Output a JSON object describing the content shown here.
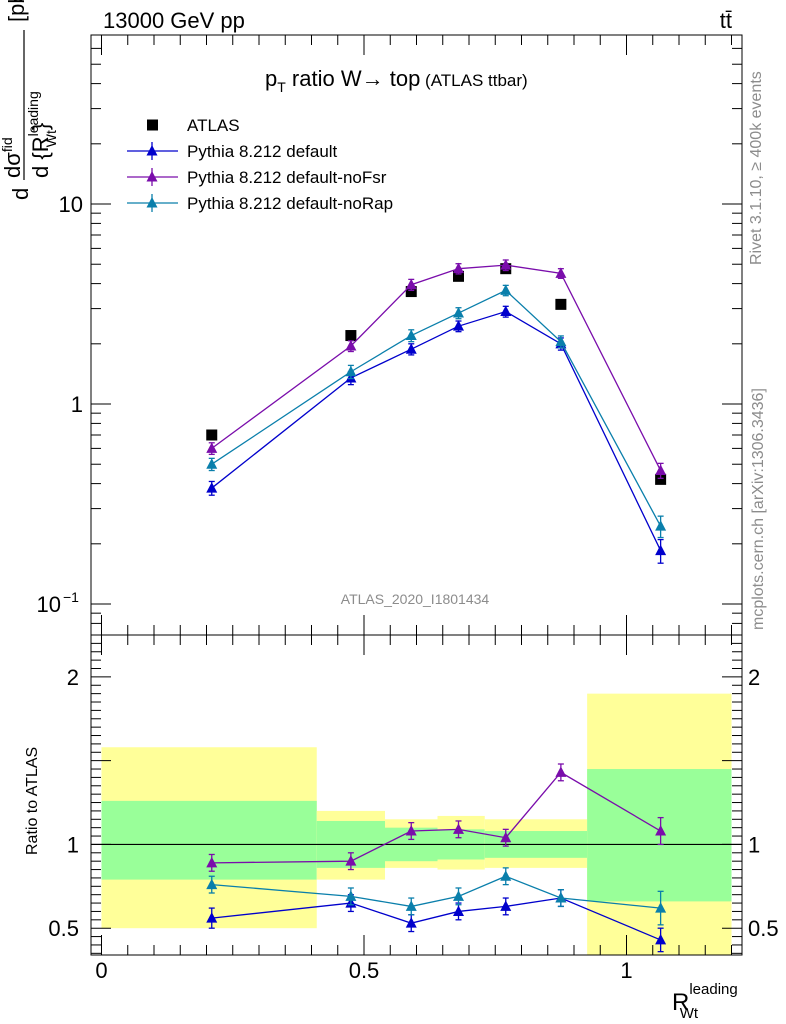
{
  "header": {
    "energy_label": "13000 GeV pp",
    "process_label": "tt̄",
    "rivet_label": "Rivet 3.1.10, ≥ 400k events",
    "mcplots_label": "mcplots.cern.ch [arXiv:1306.3436]",
    "analysis_label": "ATLAS_2020_I1801434"
  },
  "chart_data": [
    {
      "type": "line",
      "title": "pT ratio W → top (ATLAS ttbar)",
      "title_parts": {
        "p": "p",
        "sub": "T",
        "main": " ratio W",
        "arrow": "→",
        "top": " top",
        "small": " (ATLAS ttbar)"
      },
      "ylabel": "d σ^fid / d {R_Wt^leading} [pb]",
      "ylabel_parts": {
        "d": "d",
        "num": "dσ",
        "fid": "fid",
        "den": "d {R",
        "sup": "leading",
        "sub": "Wt",
        "close": "}",
        "unit": "[pb]"
      },
      "yscale": "log",
      "ylim": [
        0.07,
        70
      ],
      "xlim": [
        -0.02,
        1.22
      ],
      "y_ticks": [
        {
          "value": 0.1,
          "label": "10",
          "exp": "−1"
        },
        {
          "value": 1,
          "label": "1",
          "exp": ""
        },
        {
          "value": 10,
          "label": "10",
          "exp": ""
        }
      ],
      "legend_position": "top-left",
      "series": [
        {
          "name": "ATLAS",
          "marker": "square",
          "color": "#000000",
          "x": [
            0.21,
            0.475,
            0.59,
            0.68,
            0.77,
            0.875,
            1.065
          ],
          "y": [
            0.7,
            2.2,
            3.65,
            4.35,
            4.75,
            3.15,
            0.42
          ],
          "err": [
            0,
            0,
            0,
            0,
            0,
            0,
            0
          ]
        },
        {
          "name": "Pythia 8.212 default",
          "marker": "triangle",
          "color": "#0000cc",
          "x": [
            0.21,
            0.475,
            0.59,
            0.68,
            0.77,
            0.875,
            1.065
          ],
          "y": [
            0.38,
            1.35,
            1.88,
            2.45,
            2.9,
            2.0,
            0.185
          ],
          "err": [
            0.03,
            0.1,
            0.12,
            0.15,
            0.18,
            0.14,
            0.025
          ]
        },
        {
          "name": "Pythia 8.212 default-noFsr",
          "marker": "triangle",
          "color": "#7a0dab",
          "x": [
            0.21,
            0.475,
            0.59,
            0.68,
            0.77,
            0.875,
            1.065
          ],
          "y": [
            0.6,
            1.95,
            3.95,
            4.75,
            4.95,
            4.5,
            0.465
          ],
          "err": [
            0.04,
            0.12,
            0.25,
            0.28,
            0.3,
            0.25,
            0.04
          ]
        },
        {
          "name": "Pythia 8.212 default-noRap",
          "marker": "triangle",
          "color": "#0a7fab",
          "x": [
            0.21,
            0.475,
            0.59,
            0.68,
            0.77,
            0.875,
            1.065
          ],
          "y": [
            0.5,
            1.45,
            2.2,
            2.85,
            3.7,
            2.05,
            0.245
          ],
          "err": [
            0.035,
            0.11,
            0.15,
            0.18,
            0.22,
            0.14,
            0.03
          ]
        }
      ]
    },
    {
      "type": "line",
      "ylabel": "Ratio to ATLAS",
      "xlabel": "R_Wt^leading",
      "xlabel_parts": {
        "main": "R",
        "sup": "leading",
        "sub": "Wt"
      },
      "ylim": [
        0.34,
        2.25
      ],
      "xlim": [
        -0.02,
        1.22
      ],
      "reference_line": 1,
      "y_ticks": [
        {
          "value": 0.5,
          "label": "0.5"
        },
        {
          "value": 1,
          "label": "1"
        },
        {
          "value": 2,
          "label": "2"
        }
      ],
      "x_ticks": [
        {
          "value": 0,
          "label": "0"
        },
        {
          "value": 0.5,
          "label": "0.5"
        },
        {
          "value": 1,
          "label": "1"
        }
      ],
      "bands": [
        {
          "x0": 0.0,
          "x1": 0.41,
          "yellow": [
            0.5,
            1.58
          ],
          "green": [
            0.79,
            1.26
          ]
        },
        {
          "x0": 0.41,
          "x1": 0.54,
          "yellow": [
            0.79,
            1.2
          ],
          "green": [
            0.86,
            1.14
          ]
        },
        {
          "x0": 0.54,
          "x1": 0.64,
          "yellow": [
            0.86,
            1.15
          ],
          "green": [
            0.9,
            1.1
          ]
        },
        {
          "x0": 0.64,
          "x1": 0.73,
          "yellow": [
            0.85,
            1.17
          ],
          "green": [
            0.91,
            1.09
          ]
        },
        {
          "x0": 0.73,
          "x1": 0.925,
          "yellow": [
            0.86,
            1.15
          ],
          "green": [
            0.92,
            1.08
          ]
        },
        {
          "x0": 0.925,
          "x1": 1.2,
          "yellow": [
            0.34,
            1.9
          ],
          "green": [
            0.66,
            1.45
          ]
        }
      ],
      "series": [
        {
          "name": "Pythia 8.212 default",
          "color": "#0000cc",
          "x": [
            0.21,
            0.475,
            0.59,
            0.68,
            0.77,
            0.875,
            1.065
          ],
          "y": [
            0.56,
            0.65,
            0.53,
            0.6,
            0.63,
            0.68,
            0.43
          ],
          "err": [
            0.06,
            0.05,
            0.05,
            0.05,
            0.05,
            0.05,
            0.07
          ]
        },
        {
          "name": "Pythia 8.212 default-noFsr",
          "color": "#7a0dab",
          "x": [
            0.21,
            0.475,
            0.59,
            0.68,
            0.77,
            0.875,
            1.065
          ],
          "y": [
            0.89,
            0.9,
            1.08,
            1.09,
            1.04,
            1.43,
            1.08
          ],
          "err": [
            0.05,
            0.05,
            0.05,
            0.05,
            0.05,
            0.05,
            0.08
          ]
        },
        {
          "name": "Pythia 8.212 default-noRap",
          "color": "#0a7fab",
          "x": [
            0.21,
            0.475,
            0.59,
            0.68,
            0.77,
            0.875,
            1.065
          ],
          "y": [
            0.76,
            0.69,
            0.63,
            0.69,
            0.81,
            0.68,
            0.62
          ],
          "err": [
            0.05,
            0.05,
            0.05,
            0.05,
            0.05,
            0.05,
            0.1
          ]
        }
      ]
    }
  ]
}
